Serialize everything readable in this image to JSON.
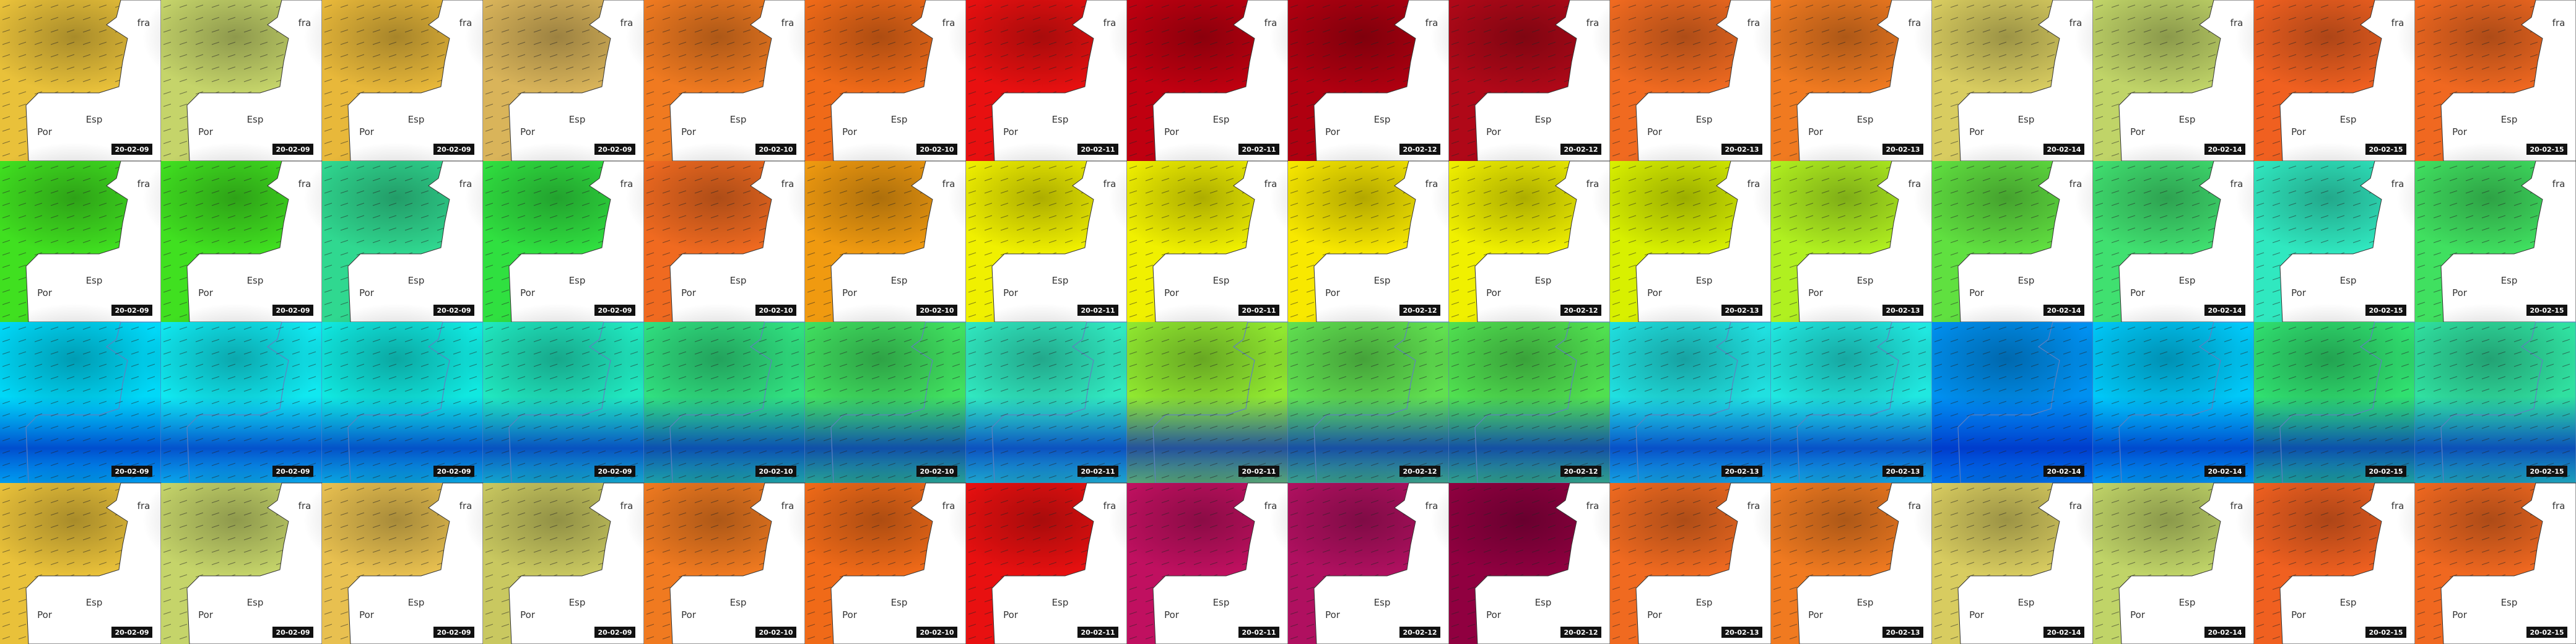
{
  "rows": [
    {
      "places": [
        "fra",
        "Esp",
        "Por"
      ],
      "dates": [
        "20-02-09",
        "20-02-09",
        "20-02-09",
        "20-02-09",
        "20-02-10",
        "20-02-10",
        "20-02-11",
        "20-02-11",
        "20-02-12",
        "20-02-12",
        "20-02-13",
        "20-02-13",
        "20-02-14",
        "20-02-14",
        "20-02-15",
        "20-02-15"
      ]
    },
    {
      "places": [
        "fra",
        "Esp",
        "Por"
      ],
      "dates": [
        "20-02-09",
        "20-02-09",
        "20-02-09",
        "20-02-09",
        "20-02-10",
        "20-02-10",
        "20-02-11",
        "20-02-11",
        "20-02-12",
        "20-02-12",
        "20-02-13",
        "20-02-13",
        "20-02-14",
        "20-02-14",
        "20-02-15",
        "20-02-15"
      ]
    },
    {
      "dates": [
        "20-02-09",
        "20-02-09",
        "20-02-09",
        "20-02-09",
        "20-02-10",
        "20-02-10",
        "20-02-11",
        "20-02-11",
        "20-02-12",
        "20-02-12",
        "20-02-13",
        "20-02-13",
        "20-02-14",
        "20-02-14",
        "20-02-15",
        "20-02-15"
      ]
    },
    {
      "places": [
        "fra",
        "Esp",
        "Por"
      ],
      "dates": [
        "20-02-09",
        "20-02-09",
        "20-02-09",
        "20-02-09",
        "20-02-10",
        "20-02-10",
        "20-02-11",
        "20-02-11",
        "20-02-12",
        "20-02-12",
        "20-02-13",
        "20-02-13",
        "20-02-14",
        "20-02-14",
        "20-02-15",
        "20-02-15"
      ]
    }
  ]
}
